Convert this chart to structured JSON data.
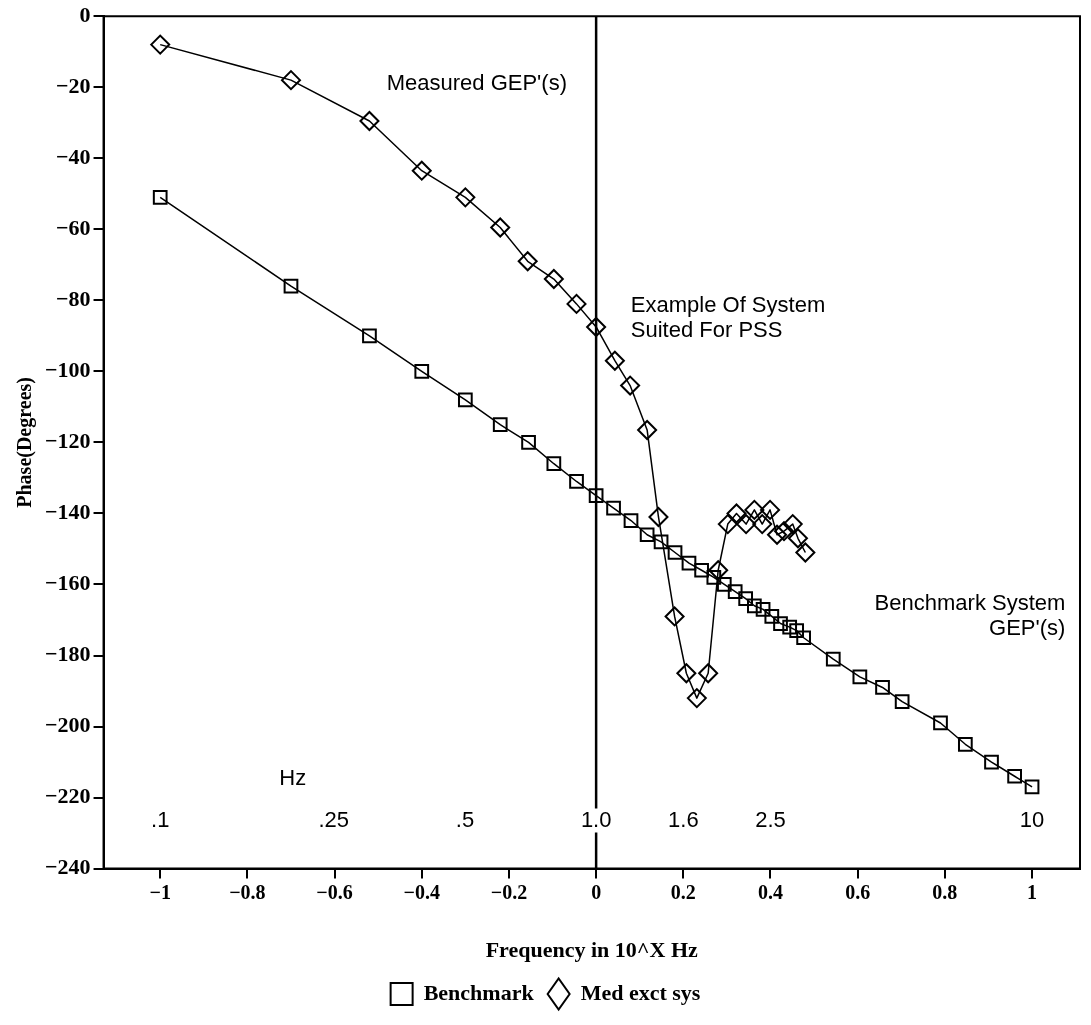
{
  "chart_data": {
    "type": "line",
    "xlabel": "Frequency in 10^X Hz",
    "ylabel": "Phase(Degrees)",
    "xlim": [
      -1.13,
      1.11
    ],
    "xticks": [
      -1,
      -0.8,
      -0.6,
      -0.4,
      -0.2,
      0,
      0.2,
      0.4,
      0.6,
      0.8,
      1
    ],
    "ylim": [
      -240,
      0
    ],
    "yticks": [
      0,
      -20,
      -40,
      -60,
      -80,
      -100,
      -120,
      -140,
      -160,
      -180,
      -200,
      -220,
      -240
    ],
    "grid": false,
    "legend": "bottom",
    "line_style": "solid",
    "ref_lines": [
      {
        "axis": "x",
        "value": 0,
        "color": "#000000"
      }
    ],
    "series": [
      {
        "name": "Benchmark",
        "color": "#000000",
        "marker": "square",
        "x": [
          -1,
          -0.7,
          -0.52,
          -0.4,
          -0.3,
          -0.22,
          -0.155,
          -0.097,
          -0.045,
          0,
          0.04,
          0.08,
          0.117,
          0.149,
          0.181,
          0.213,
          0.242,
          0.27,
          0.294,
          0.319,
          0.343,
          0.363,
          0.383,
          0.403,
          0.423,
          0.444,
          0.46,
          0.476,
          0.544,
          0.605,
          0.657,
          0.702,
          0.79,
          0.847,
          0.907,
          0.96,
          1
        ],
        "values": [
          -51,
          -76,
          -90,
          -100,
          -108,
          -115,
          -120,
          -126,
          -131,
          -135,
          -138.5,
          -142,
          -146,
          -148,
          -151,
          -154,
          -156,
          -158,
          -160,
          -162,
          -164,
          -166,
          -167,
          -169,
          -171,
          -172,
          -173,
          -175,
          -181,
          -186,
          -189,
          -193,
          -199,
          -205,
          -210,
          -214,
          -217
        ]
      },
      {
        "name": "Med exct sys",
        "color": "#000000",
        "marker": "diamond",
        "x": [
          -1,
          -0.7,
          -0.52,
          -0.4,
          -0.3,
          -0.22,
          -0.157,
          -0.097,
          -0.045,
          0,
          0.043,
          0.078,
          0.117,
          0.143,
          0.18,
          0.207,
          0.231,
          0.257,
          0.28,
          0.302,
          0.322,
          0.344,
          0.363,
          0.381,
          0.399,
          0.415,
          0.431,
          0.451,
          0.463,
          0.48
        ],
        "values": [
          -8,
          -18,
          -29.5,
          -43.5,
          -51,
          -59.5,
          -69,
          -74,
          -81,
          -87.5,
          -97,
          -104,
          -116.5,
          -141,
          -169,
          -185,
          -192,
          -185,
          -156,
          -143,
          -140,
          -143,
          -139,
          -143,
          -139,
          -146,
          -145,
          -143,
          -147,
          -151
        ]
      }
    ],
    "log": "x2",
    "x2label": "Hz",
    "x2lim": [
      0.0741,
      12.88
    ],
    "x2ticks": [
      {
        "value": 0.1,
        "label": ".1"
      },
      {
        "value": 0.25,
        "label": ".25"
      },
      {
        "value": 0.5,
        "label": ".5"
      },
      {
        "value": 1,
        "label": "1.0"
      },
      {
        "value": 1.585,
        "label": "1.6"
      },
      {
        "value": 2.512,
        "label": "2.5"
      },
      10
    ],
    "annotations": [
      "Measured GEP'(s)",
      "Example Of System\nSuited For PSS",
      "Benchmark System\nGEP'(s)"
    ]
  }
}
